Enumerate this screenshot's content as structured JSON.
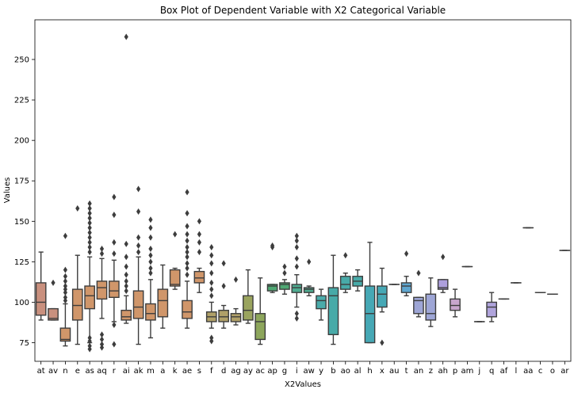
{
  "chart_data": {
    "type": "box",
    "title": "Box Plot of Dependent Variable with X2 Categorical Variable",
    "xlabel": "X2Values",
    "ylabel": "Values",
    "ylim": [
      63.5,
      274.5
    ],
    "yticks": [
      75,
      100,
      125,
      150,
      175,
      200,
      225,
      250
    ],
    "grid": false,
    "boxes": [
      {
        "category": "at",
        "color": "#c9907e",
        "whislo": 89,
        "q1": 92,
        "med": 100,
        "q3": 112,
        "whishi": 131,
        "fliers": []
      },
      {
        "category": "av",
        "color": "#c9907e",
        "whislo": 89,
        "q1": 89,
        "med": 90,
        "q3": 96,
        "whishi": 96,
        "fliers": [
          112
        ]
      },
      {
        "category": "n",
        "color": "#d0966a",
        "whislo": 73,
        "q1": 76,
        "med": 77,
        "q3": 84,
        "whishi": 99,
        "fliers": [
          101,
          103,
          106,
          108,
          110,
          113,
          116,
          120,
          141
        ]
      },
      {
        "category": "e",
        "color": "#d0966a",
        "whislo": 74,
        "q1": 89,
        "med": 98,
        "q3": 108,
        "whishi": 129,
        "fliers": [
          158
        ]
      },
      {
        "category": "as",
        "color": "#d0966a",
        "whislo": 75,
        "q1": 96,
        "med": 104,
        "q3": 110,
        "whishi": 128,
        "fliers": [
          71,
          73,
          76,
          78,
          131,
          134,
          137,
          140,
          143,
          146,
          149,
          152,
          155,
          158,
          161
        ]
      },
      {
        "category": "aq",
        "color": "#d0966a",
        "whislo": 90,
        "q1": 102,
        "med": 109,
        "q3": 113,
        "whishi": 127,
        "fliers": [
          72,
          74,
          77,
          80,
          130,
          133
        ]
      },
      {
        "category": "r",
        "color": "#d0966a",
        "whislo": 88,
        "q1": 103,
        "med": 107,
        "q3": 113,
        "whishi": 126,
        "fliers": [
          74,
          86,
          130,
          137,
          154,
          165
        ]
      },
      {
        "category": "ai",
        "color": "#d0966a",
        "whislo": 87,
        "q1": 89,
        "med": 91,
        "q3": 95,
        "whishi": 104,
        "fliers": [
          107,
          110,
          113,
          117,
          122,
          128,
          136,
          264
        ]
      },
      {
        "category": "ak",
        "color": "#d0966a",
        "whislo": 74,
        "q1": 90,
        "med": 97,
        "q3": 107,
        "whishi": 128,
        "fliers": [
          131,
          135,
          140,
          156,
          170
        ]
      },
      {
        "category": "m",
        "color": "#d0966a",
        "whislo": 78,
        "q1": 89,
        "med": 93,
        "q3": 99,
        "whishi": 114,
        "fliers": [
          118,
          121,
          125,
          129,
          133,
          140,
          146,
          151
        ]
      },
      {
        "category": "a",
        "color": "#d0966a",
        "whislo": 84,
        "q1": 91,
        "med": 101,
        "q3": 108,
        "whishi": 123,
        "fliers": []
      },
      {
        "category": "k",
        "color": "#d0966a",
        "whislo": 108,
        "q1": 110,
        "med": 111,
        "q3": 120,
        "whishi": 121,
        "fliers": [
          142
        ]
      },
      {
        "category": "ae",
        "color": "#d0966a",
        "whislo": 84,
        "q1": 90,
        "med": 94,
        "q3": 101,
        "whishi": 113,
        "fliers": [
          117,
          121,
          124,
          128,
          131,
          134,
          138,
          142,
          147,
          155,
          168
        ]
      },
      {
        "category": "s",
        "color": "#d0966a",
        "whislo": 106,
        "q1": 112,
        "med": 115,
        "q3": 119,
        "whishi": 121,
        "fliers": [
          131,
          137,
          142,
          150
        ]
      },
      {
        "category": "f",
        "color": "#b0a068",
        "whislo": 84,
        "q1": 88,
        "med": 91,
        "q3": 94,
        "whishi": 100,
        "fliers": [
          76,
          78,
          104,
          108,
          112,
          118,
          124,
          129,
          134
        ]
      },
      {
        "category": "d",
        "color": "#b0a068",
        "whislo": 84,
        "q1": 88,
        "med": 91,
        "q3": 95,
        "whishi": 98,
        "fliers": [
          110,
          124
        ]
      },
      {
        "category": "ag",
        "color": "#b0a068",
        "whislo": 86,
        "q1": 88,
        "med": 91,
        "q3": 93,
        "whishi": 96,
        "fliers": [
          114
        ]
      },
      {
        "category": "ay",
        "color": "#9aa45e",
        "whislo": 87,
        "q1": 89,
        "med": 95,
        "q3": 104,
        "whishi": 120,
        "fliers": []
      },
      {
        "category": "ac",
        "color": "#8da65c",
        "whislo": 74,
        "q1": 77,
        "med": 88,
        "q3": 93,
        "whishi": 115,
        "fliers": []
      },
      {
        "category": "ap",
        "color": "#4fa873",
        "whislo": 106,
        "q1": 107,
        "med": 110,
        "q3": 111,
        "whishi": 111,
        "fliers": [
          134,
          135
        ]
      },
      {
        "category": "g",
        "color": "#4fa873",
        "whislo": 105,
        "q1": 108,
        "med": 111,
        "q3": 112,
        "whishi": 114,
        "fliers": [
          118,
          122
        ]
      },
      {
        "category": "i",
        "color": "#4eab90",
        "whislo": 97,
        "q1": 106,
        "med": 109,
        "q3": 111,
        "whishi": 117,
        "fliers": [
          90,
          93,
          122,
          127,
          134,
          138,
          141
        ]
      },
      {
        "category": "aw",
        "color": "#4eab90",
        "whislo": 104,
        "q1": 106,
        "med": 108,
        "q3": 109,
        "whishi": 110,
        "fliers": [
          125
        ]
      },
      {
        "category": "y",
        "color": "#4aabaa",
        "whislo": 89,
        "q1": 96,
        "med": 101,
        "q3": 104,
        "whishi": 108,
        "fliers": []
      },
      {
        "category": "b",
        "color": "#48aaa8",
        "whislo": 74,
        "q1": 80,
        "med": 104,
        "q3": 109,
        "whishi": 129,
        "fliers": []
      },
      {
        "category": "ao",
        "color": "#48aaa8",
        "whislo": 106,
        "q1": 108,
        "med": 111,
        "q3": 116,
        "whishi": 118,
        "fliers": [
          129
        ]
      },
      {
        "category": "al",
        "color": "#48aaa8",
        "whislo": 107,
        "q1": 110,
        "med": 113,
        "q3": 116,
        "whishi": 120,
        "fliers": []
      },
      {
        "category": "h",
        "color": "#46a8b5",
        "whislo": 75,
        "q1": 75,
        "med": 93,
        "q3": 110,
        "whishi": 137,
        "fliers": []
      },
      {
        "category": "x",
        "color": "#46a8b5",
        "whislo": 94,
        "q1": 97,
        "med": 105,
        "q3": 110,
        "whishi": 121,
        "fliers": [
          75
        ]
      },
      {
        "category": "au",
        "color": "#4da6c3",
        "whislo": 111,
        "q1": 111,
        "med": 111,
        "q3": 111,
        "whishi": 111,
        "fliers": []
      },
      {
        "category": "t",
        "color": "#5fa6cf",
        "whislo": 104,
        "q1": 106,
        "med": 110,
        "q3": 112,
        "whishi": 116,
        "fliers": [
          130
        ]
      },
      {
        "category": "an",
        "color": "#9ea6d6",
        "whislo": 91,
        "q1": 93,
        "med": 101,
        "q3": 103,
        "whishi": 103,
        "fliers": [
          118
        ]
      },
      {
        "category": "z",
        "color": "#9ea6d6",
        "whislo": 85,
        "q1": 89,
        "med": 93,
        "q3": 105,
        "whishi": 115,
        "fliers": []
      },
      {
        "category": "ah",
        "color": "#ad9fdc",
        "whislo": 106,
        "q1": 108,
        "med": 109,
        "q3": 114,
        "whishi": 114,
        "fliers": [
          128
        ]
      },
      {
        "category": "p",
        "color": "#c8a6ce",
        "whislo": 91,
        "q1": 95,
        "med": 98,
        "q3": 102,
        "whishi": 108,
        "fliers": []
      },
      {
        "category": "am",
        "color": "#c8a6ce",
        "whislo": 122,
        "q1": 122,
        "med": 122,
        "q3": 122,
        "whishi": 122,
        "fliers": []
      },
      {
        "category": "j",
        "color": "#c8a6ce",
        "whislo": 88,
        "q1": 88,
        "med": 88,
        "q3": 88,
        "whishi": 88,
        "fliers": []
      },
      {
        "category": "q",
        "color": "#b0a4dc",
        "whislo": 88,
        "q1": 91,
        "med": 97,
        "q3": 100,
        "whishi": 106,
        "fliers": []
      },
      {
        "category": "af",
        "color": "#c8a6ce",
        "whislo": 102,
        "q1": 102,
        "med": 102,
        "q3": 102,
        "whishi": 102,
        "fliers": []
      },
      {
        "category": "l",
        "color": "#c8a6ce",
        "whislo": 112,
        "q1": 112,
        "med": 112,
        "q3": 112,
        "whishi": 112,
        "fliers": []
      },
      {
        "category": "aa",
        "color": "#c8a6ce",
        "whislo": 146,
        "q1": 146,
        "med": 146,
        "q3": 146,
        "whishi": 146,
        "fliers": []
      },
      {
        "category": "c",
        "color": "#c8a6ce",
        "whislo": 106,
        "q1": 106,
        "med": 106,
        "q3": 106,
        "whishi": 106,
        "fliers": []
      },
      {
        "category": "o",
        "color": "#c8a6ce",
        "whislo": 105,
        "q1": 105,
        "med": 105,
        "q3": 105,
        "whishi": 105,
        "fliers": []
      },
      {
        "category": "ar",
        "color": "#c8a6ce",
        "whislo": 132,
        "q1": 132,
        "med": 132,
        "q3": 132,
        "whishi": 132,
        "fliers": []
      }
    ]
  }
}
